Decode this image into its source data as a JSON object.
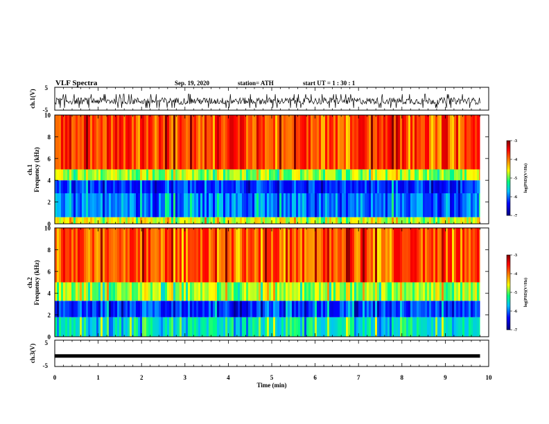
{
  "header": {
    "title": "VLF Spectra",
    "date": "Sep. 19, 2020",
    "station": "station= ATH",
    "start": "start  UT  =   1 : 30 : 1"
  },
  "chart_data": [
    {
      "type": "line",
      "name": "ch1-waveform",
      "ylabel": "ch.1(V)",
      "ylim": [
        -5,
        5
      ],
      "yticks": [
        "5",
        "-5"
      ],
      "xlim": [
        0,
        10
      ],
      "x_unit": "min",
      "signal_extent_min": 9.8,
      "amplitude_range_V": [
        -4,
        2
      ]
    },
    {
      "type": "heatmap",
      "name": "ch1-spectrogram",
      "ylabel_line1": "ch.1",
      "ylabel_line2": "Frequency  (kHz)",
      "ylim": [
        0,
        10
      ],
      "yticks": [
        "0",
        "2",
        "4",
        "6",
        "8",
        "10"
      ],
      "xlim": [
        0,
        10
      ],
      "data_extent_min": 9.8,
      "log_psd_by_band": [
        {
          "f_kHz": [
            0.0,
            0.6
          ],
          "log_psd": -4.6
        },
        {
          "f_kHz": [
            0.6,
            2.8
          ],
          "log_psd": -5.9
        },
        {
          "f_kHz": [
            2.8,
            4.0
          ],
          "log_psd": -6.2
        },
        {
          "f_kHz": [
            4.0,
            5.0
          ],
          "log_psd": -4.8
        },
        {
          "f_kHz": [
            5.0,
            10.0
          ],
          "log_psd": -3.7
        }
      ],
      "colorbar": {
        "label": "log(PSD)(V²/Hz)",
        "range": [
          -7,
          -3
        ],
        "ticks": [
          "-3",
          "-4",
          "-5",
          "-6",
          "-7"
        ],
        "colors": [
          "#7f0000",
          "#ff0000",
          "#ff8000",
          "#ffff00",
          "#00ff80",
          "#00c0ff",
          "#0000ff",
          "#000080"
        ]
      }
    },
    {
      "type": "heatmap",
      "name": "ch2-spectrogram",
      "ylabel_line1": "ch.2",
      "ylabel_line2": "Frequency  (kHz)",
      "ylim": [
        0,
        10
      ],
      "yticks": [
        "0",
        "2",
        "4",
        "6",
        "8",
        "10"
      ],
      "xlim": [
        0,
        10
      ],
      "data_extent_min": 9.8,
      "log_psd_by_band": [
        {
          "f_kHz": [
            0.0,
            1.8
          ],
          "log_psd": -5.4
        },
        {
          "f_kHz": [
            1.8,
            3.3
          ],
          "log_psd": -6.2
        },
        {
          "f_kHz": [
            3.3,
            5.0
          ],
          "log_psd": -4.8
        },
        {
          "f_kHz": [
            5.0,
            10.0
          ],
          "log_psd": -3.8
        }
      ],
      "colorbar": {
        "label": "log(PSD)(V²/Hz)",
        "range": [
          -7,
          -3
        ],
        "ticks": [
          "-3",
          "-4",
          "-5",
          "-6",
          "-7"
        ]
      }
    },
    {
      "type": "line",
      "name": "ch3-waveform",
      "ylabel": "ch.3(V)",
      "ylim": [
        -5,
        5
      ],
      "yticks": [
        "5",
        "-5"
      ],
      "xlim": [
        0,
        10
      ],
      "signal_value_V": -1,
      "signal_extent_min": 9.8
    }
  ],
  "x_axis": {
    "label": "Time  (min)",
    "ticks": [
      "0",
      "1",
      "2",
      "3",
      "4",
      "5",
      "6",
      "7",
      "8",
      "9",
      "10"
    ]
  }
}
